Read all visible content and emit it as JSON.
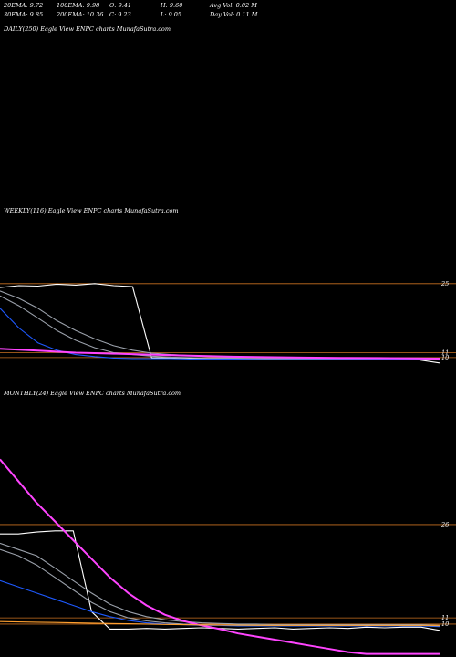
{
  "header": {
    "row1": [
      {
        "label": "20EMA: 9.72"
      },
      {
        "label": "100EMA: 9.98"
      },
      {
        "label": "O: 9.41"
      },
      {
        "label": "H: 9.60"
      },
      {
        "label": "Avg Vol: 0.02  M"
      }
    ],
    "row2": [
      {
        "label": "30EMA: 9.85"
      },
      {
        "label": "200EMA: 10.36"
      },
      {
        "label": "C: 9.23"
      },
      {
        "label": "L: 9.05"
      },
      {
        "label": "Day Vol: 0.11  M"
      }
    ]
  },
  "panels": {
    "daily": {
      "label": "DAILY(250) Eagle  View  ENPC charts MunafaSutra.com"
    },
    "weekly": {
      "label": "WEEKLY(116) Eagle  View  ENPC charts MunafaSutra.com"
    },
    "monthly": {
      "label": "MONTHLY(24) Eagle  View  ENPC charts MunafaSutra.com"
    }
  },
  "colors": {
    "background": "#000000",
    "price": "#ffffff",
    "ema_short": "#1e5aff",
    "ema_mid": "#9aa0aa",
    "ema_long": "#ff44ff",
    "level_line": "#c87020",
    "baseline": "#ffa030"
  },
  "chart_data": [
    {
      "type": "line",
      "panel": "weekly",
      "title": "WEEKLY(116) Eagle  View  ENPC charts MunafaSutra.com",
      "ylim": [
        8.5,
        27
      ],
      "levels": [
        {
          "value": 25,
          "label": "25"
        },
        {
          "value": 11,
          "label": "11"
        },
        {
          "value": 10,
          "label": "10"
        }
      ],
      "x": [
        0,
        5,
        10,
        15,
        20,
        25,
        30,
        35,
        40,
        45,
        50,
        55,
        60,
        70,
        80,
        90,
        100,
        110,
        116
      ],
      "series": [
        {
          "values": [
            24.2,
            24.6,
            24.5,
            24.9,
            24.7,
            25.0,
            24.6,
            24.4,
            10.0,
            9.9,
            9.8,
            9.8,
            9.7,
            9.8,
            9.7,
            9.8,
            9.7,
            9.6,
            8.9
          ],
          "color": "price"
        },
        {
          "values": [
            20.0,
            16.0,
            13.0,
            11.5,
            10.6,
            10.2,
            9.9,
            9.8,
            9.8,
            9.8,
            9.7,
            9.7,
            9.7,
            9.7,
            9.7,
            9.7,
            9.7,
            9.7,
            9.5
          ],
          "color": "ema_short"
        },
        {
          "values": [
            22.5,
            20.5,
            18.0,
            15.5,
            13.5,
            12.0,
            11.0,
            10.6,
            10.3,
            10.1,
            10.0,
            9.9,
            9.9,
            9.8,
            9.8,
            9.8,
            9.8,
            9.8,
            9.7
          ],
          "color": "ema_mid"
        },
        {
          "values": [
            23.5,
            22.0,
            20.0,
            17.5,
            15.5,
            13.8,
            12.4,
            11.5,
            10.9,
            10.6,
            10.4,
            10.2,
            10.1,
            10.0,
            9.9,
            9.9,
            9.9,
            9.9,
            9.8
          ],
          "color": "ema_mid"
        },
        {
          "values": [
            11.8,
            11.6,
            11.4,
            11.2,
            11.0,
            10.9,
            10.8,
            10.7,
            10.6,
            10.5,
            10.4,
            10.3,
            10.2,
            10.1,
            10.0,
            9.95,
            9.9,
            9.85,
            9.8
          ],
          "color": "ema_long"
        }
      ]
    },
    {
      "type": "line",
      "panel": "monthly",
      "title": "MONTHLY(24) Eagle  View  ENPC charts MunafaSutra.com",
      "ylim": [
        5,
        37
      ],
      "levels": [
        {
          "value": 26,
          "label": "26"
        },
        {
          "value": 10,
          "label": "10"
        },
        {
          "value": 11,
          "label": "11"
        }
      ],
      "x": [
        0,
        1,
        2,
        3,
        4,
        5,
        6,
        7,
        8,
        9,
        10,
        11,
        12,
        13,
        14,
        15,
        16,
        17,
        18,
        19,
        20,
        21,
        22,
        23,
        24
      ],
      "series": [
        {
          "values": [
            24.5,
            24.5,
            24.8,
            25.0,
            25.0,
            12.0,
            9.2,
            9.2,
            9.3,
            9.2,
            9.3,
            9.4,
            9.3,
            9.2,
            9.3,
            9.4,
            9.2,
            9.3,
            9.4,
            9.3,
            9.5,
            9.4,
            9.5,
            9.5,
            9.0
          ],
          "color": "price"
        },
        {
          "values": [
            17.0,
            16.0,
            15.0,
            14.0,
            13.0,
            12.0,
            11.2,
            10.6,
            10.2,
            10.0,
            9.9,
            9.8,
            9.8,
            9.7,
            9.7,
            9.7,
            9.7,
            9.7,
            9.7,
            9.7,
            9.7,
            9.7,
            9.7,
            9.7,
            9.6
          ],
          "color": "ema_short"
        },
        {
          "values": [
            22.0,
            21.0,
            19.5,
            17.5,
            15.5,
            13.5,
            12.0,
            11.0,
            10.5,
            10.2,
            10.0,
            9.9,
            9.85,
            9.8,
            9.8,
            9.8,
            9.8,
            9.8,
            9.8,
            9.8,
            9.8,
            9.8,
            9.8,
            9.8,
            9.7
          ],
          "color": "ema_mid"
        },
        {
          "values": [
            23.0,
            22.0,
            21.0,
            19.0,
            17.0,
            15.0,
            13.2,
            12.0,
            11.2,
            10.7,
            10.4,
            10.2,
            10.1,
            10.0,
            10.0,
            9.9,
            9.9,
            9.9,
            9.9,
            9.9,
            9.9,
            9.9,
            9.9,
            9.9,
            9.8
          ],
          "color": "ema_mid"
        },
        {
          "values": [
            36.5,
            33.0,
            29.5,
            26.5,
            23.5,
            20.5,
            17.5,
            15.0,
            13.0,
            11.5,
            10.5,
            9.8,
            9.2,
            8.5,
            8.0,
            7.5,
            7.0,
            6.5,
            6.0,
            5.5,
            5.2,
            5.2,
            5.2,
            5.2,
            5.2
          ],
          "color": "ema_long"
        },
        {
          "values": [
            10.4,
            10.35,
            10.3,
            10.25,
            10.2,
            10.15,
            10.1,
            10.05,
            10.0,
            9.95,
            9.9,
            9.88,
            9.86,
            9.84,
            9.82,
            9.8,
            9.8,
            9.8,
            9.8,
            9.8,
            9.8,
            9.8,
            9.8,
            9.8,
            9.8
          ],
          "color": "baseline"
        }
      ]
    }
  ]
}
